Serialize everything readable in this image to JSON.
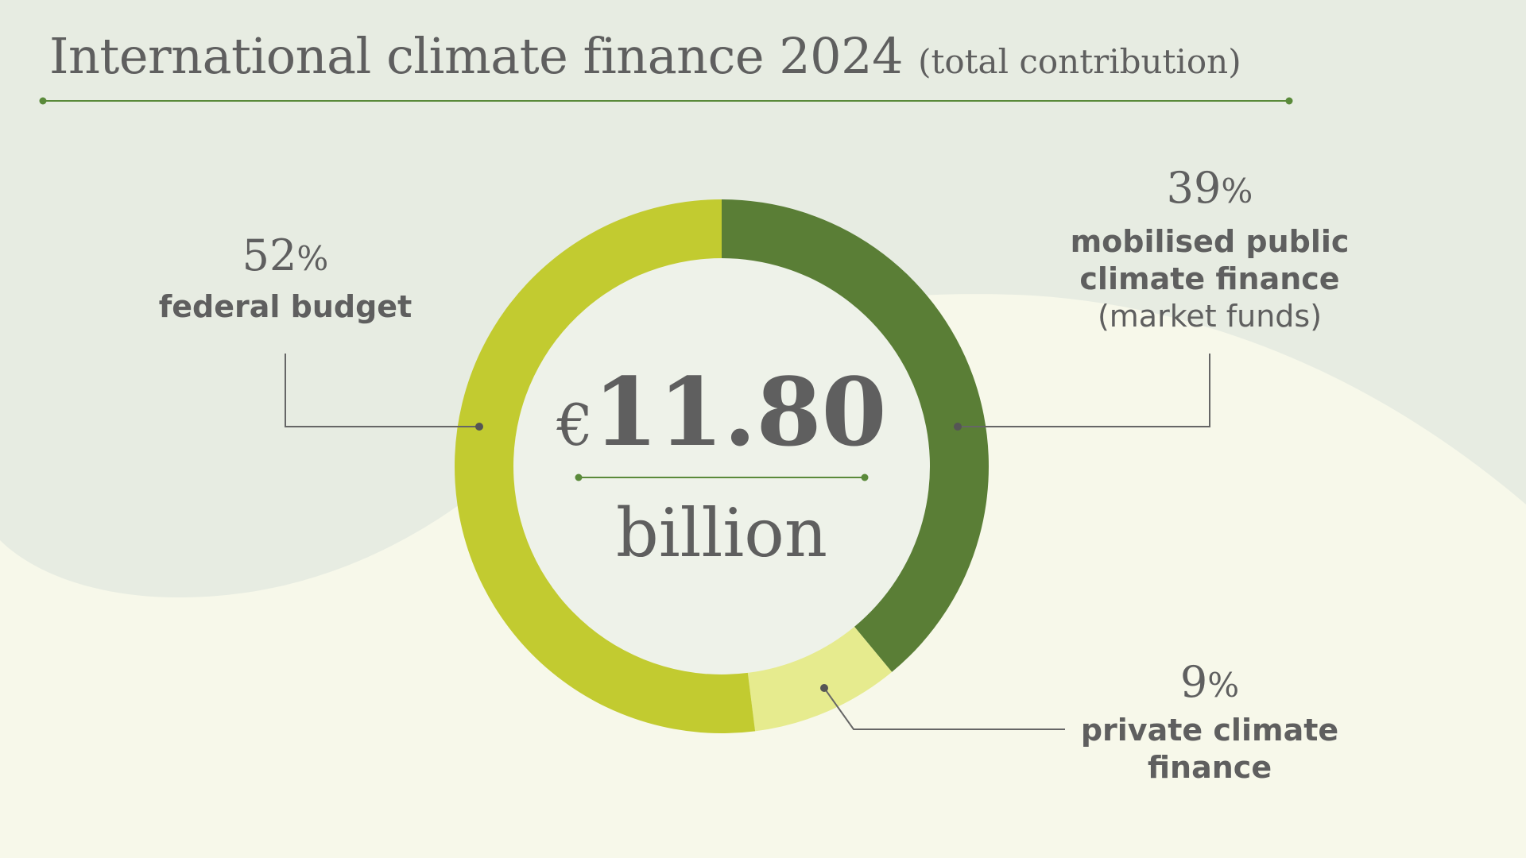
{
  "title": "International climate finance 2024",
  "subtitle": "(total contribution)",
  "center": {
    "currency": "€",
    "amount": "11.80",
    "unit": "billion"
  },
  "colors": {
    "federal_budget": "#c2cb30",
    "mobilised_public": "#5a7e36",
    "private": "#e6eb8e",
    "text": "#5f5f5f",
    "rule": "#5a8a3a"
  },
  "chart_data": {
    "type": "pie",
    "donut": true,
    "total": "€11.80 billion",
    "slices": [
      {
        "key": "mobilised_public",
        "percent": 39,
        "percent_label": "39",
        "label_lines": [
          "mobilised public",
          "climate finance"
        ],
        "note": "(market funds)"
      },
      {
        "key": "private",
        "percent": 9,
        "percent_label": "9",
        "label_lines": [
          "private climate",
          "finance"
        ]
      },
      {
        "key": "federal_budget",
        "percent": 52,
        "percent_label": "52",
        "label_lines": [
          "federal budget"
        ]
      }
    ]
  }
}
